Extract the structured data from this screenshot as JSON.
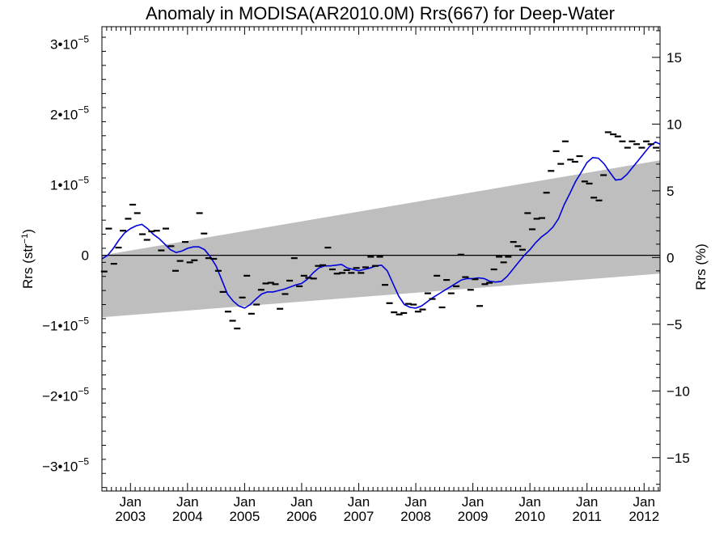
{
  "chart_data": {
    "type": "line",
    "title": "Anomaly in MODISA(AR2010.0M) Rrs(667) for Deep-Water",
    "ylabel_left": "Rrs (str⁻¹)",
    "ylabel_right": "Rrs (%)",
    "x_range": [
      2002.5,
      2012.28
    ],
    "y_range": [
      -3.35e-05,
      3.25e-05
    ],
    "y2_range": [
      -17.5,
      17.3
    ],
    "left_ticks": [
      {
        "value": 3e-05,
        "label": "3•10",
        "exp": "−5"
      },
      {
        "value": 2e-05,
        "label": "2•10",
        "exp": "−5"
      },
      {
        "value": 1e-05,
        "label": "1•10",
        "exp": "−5"
      },
      {
        "value": 0,
        "label": "0",
        "exp": ""
      },
      {
        "value": -1e-05,
        "label": "−1•10",
        "exp": "−5"
      },
      {
        "value": -2e-05,
        "label": "−2•10",
        "exp": "−5"
      },
      {
        "value": -3e-05,
        "label": "−3•10",
        "exp": "−5"
      }
    ],
    "right_ticks": [
      {
        "value": 15,
        "label": "15"
      },
      {
        "value": 10,
        "label": "10"
      },
      {
        "value": 5,
        "label": "5"
      },
      {
        "value": 0,
        "label": "0"
      },
      {
        "value": -5,
        "label": "−5"
      },
      {
        "value": -10,
        "label": "−10"
      },
      {
        "value": -15,
        "label": "−15"
      }
    ],
    "x_ticks": [
      {
        "value": 2003,
        "month": "Jan",
        "year": "2003"
      },
      {
        "value": 2004,
        "month": "Jan",
        "year": "2004"
      },
      {
        "value": 2005,
        "month": "Jan",
        "year": "2005"
      },
      {
        "value": 2006,
        "month": "Jan",
        "year": "2006"
      },
      {
        "value": 2007,
        "month": "Jan",
        "year": "2007"
      },
      {
        "value": 2008,
        "month": "Jan",
        "year": "2008"
      },
      {
        "value": 2009,
        "month": "Jan",
        "year": "2009"
      },
      {
        "value": 2010,
        "month": "Jan",
        "year": "2010"
      },
      {
        "value": 2011,
        "month": "Jan",
        "year": "2011"
      },
      {
        "value": 2012,
        "month": "Jan",
        "year": "2012"
      }
    ],
    "uncertainty_band": {
      "x": [
        2002.5,
        2012.28
      ],
      "upper": [
        0,
        1.35e-05
      ],
      "lower": [
        -8.8e-06,
        -2.6e-06
      ],
      "color": "#bebebe"
    },
    "monthly_anomaly": {
      "x": [
        2002.54,
        2002.62,
        2002.71,
        2002.79,
        2002.87,
        2002.96,
        2003.04,
        2003.12,
        2003.21,
        2003.29,
        2003.37,
        2003.46,
        2003.54,
        2003.62,
        2003.71,
        2003.79,
        2003.87,
        2003.96,
        2004.04,
        2004.12,
        2004.21,
        2004.29,
        2004.37,
        2004.46,
        2004.54,
        2004.62,
        2004.71,
        2004.79,
        2004.87,
        2004.96,
        2005.04,
        2005.12,
        2005.21,
        2005.29,
        2005.37,
        2005.46,
        2005.54,
        2005.62,
        2005.71,
        2005.79,
        2005.87,
        2005.96,
        2006.04,
        2006.12,
        2006.21,
        2006.29,
        2006.37,
        2006.46,
        2006.54,
        2006.62,
        2006.71,
        2006.79,
        2006.87,
        2006.96,
        2007.04,
        2007.12,
        2007.21,
        2007.29,
        2007.37,
        2007.46,
        2007.54,
        2007.62,
        2007.71,
        2007.79,
        2007.87,
        2007.96,
        2008.04,
        2008.12,
        2008.21,
        2008.29,
        2008.37,
        2008.46,
        2008.54,
        2008.62,
        2008.71,
        2008.79,
        2008.87,
        2008.96,
        2009.04,
        2009.12,
        2009.21,
        2009.29,
        2009.37,
        2009.46,
        2009.54,
        2009.62,
        2009.71,
        2009.79,
        2009.87,
        2009.96,
        2010.04,
        2010.12,
        2010.21,
        2010.29,
        2010.37,
        2010.46,
        2010.54,
        2010.62,
        2010.71,
        2010.79,
        2010.87,
        2010.96,
        2011.04,
        2011.12,
        2011.21,
        2011.29,
        2011.37,
        2011.46,
        2011.54,
        2011.62,
        2011.71,
        2011.79,
        2011.87,
        2011.96,
        2012.04,
        2012.12,
        2012.21
      ],
      "y": [
        -2.3e-06,
        3.8e-06,
        -1.2e-06,
        1.1e-06,
        3.5e-06,
        5.2e-06,
        7.2e-06,
        6e-06,
        3e-06,
        2.2e-06,
        3.4e-06,
        3.5e-06,
        7e-07,
        3.8e-06,
        1.3e-06,
        -2.2e-06,
        -8e-07,
        1.9e-06,
        -1e-06,
        -7e-07,
        6e-06,
        3.1e-06,
        -4e-07,
        -5e-07,
        -2.2e-06,
        -5.2e-06,
        -8e-06,
        -9.3e-06,
        -1.04e-05,
        -6e-06,
        -2.9e-06,
        -8.3e-06,
        -7e-06,
        -4.9e-06,
        -4e-06,
        -3.9e-06,
        -4.1e-06,
        -7.6e-06,
        -5.5e-06,
        -3.6e-06,
        -4e-07,
        -4.4e-06,
        -2.9e-06,
        -3.2e-06,
        -3.3e-06,
        -1.5e-06,
        -1.4e-06,
        1.1e-06,
        -2e-06,
        -2.6e-06,
        -2.5e-06,
        -2.1e-06,
        -2.5e-06,
        -1.8e-06,
        -2.5e-06,
        -1.7e-06,
        -2e-07,
        -1.5e-06,
        -2e-07,
        -4.2e-06,
        -6.8e-06,
        -8.1e-06,
        -8.4e-06,
        -8.2e-06,
        -6.9e-06,
        -7e-06,
        -8e-06,
        -7.7e-06,
        -5.4e-06,
        -6.2e-06,
        -2.9e-06,
        -7.4e-06,
        -3.5e-06,
        -5.4e-06,
        -4.4e-06,
        1e-07,
        -3.1e-06,
        -4.9e-06,
        -3.4e-06,
        -7.2e-06,
        -4.1e-06,
        -3.9e-06,
        -2e-06,
        -2e-07,
        -1e-06,
        -2e-07,
        1.9e-06,
        1.3e-06,
        8e-07,
        6e-06,
        3.7e-06,
        5.2e-06,
        5.3e-06,
        8.9e-06,
        1.2e-05,
        1.48e-05,
        1.3e-05,
        1.62e-05,
        1.36e-05,
        1.33e-05,
        1.41e-05,
        1.05e-05,
        1.02e-05,
        8.2e-06,
        7.8e-06,
        1.14e-05,
        1.75e-05,
        1.72e-05,
        1.69e-05,
        1.62e-05,
        1.53e-05,
        1.62e-05,
        1.58e-05,
        1.53e-05,
        1.62e-05,
        1.58e-05,
        1.53e-05
      ]
    },
    "smoothed": {
      "color": "#0000dd",
      "x": [
        2002.5,
        2002.6,
        2002.7,
        2002.8,
        2002.9,
        2003.0,
        2003.1,
        2003.2,
        2003.3,
        2003.4,
        2003.5,
        2003.6,
        2003.7,
        2003.8,
        2003.9,
        2004.0,
        2004.1,
        2004.2,
        2004.3,
        2004.4,
        2004.5,
        2004.6,
        2004.7,
        2004.8,
        2004.9,
        2005.0,
        2005.1,
        2005.2,
        2005.3,
        2005.4,
        2005.5,
        2005.6,
        2005.7,
        2005.8,
        2005.9,
        2006.0,
        2006.1,
        2006.2,
        2006.3,
        2006.4,
        2006.5,
        2006.6,
        2006.7,
        2006.8,
        2006.9,
        2007.0,
        2007.1,
        2007.2,
        2007.3,
        2007.4,
        2007.5,
        2007.6,
        2007.7,
        2007.8,
        2007.9,
        2008.0,
        2008.1,
        2008.2,
        2008.3,
        2008.4,
        2008.5,
        2008.6,
        2008.7,
        2008.8,
        2008.9,
        2009.0,
        2009.1,
        2009.2,
        2009.3,
        2009.4,
        2009.5,
        2009.6,
        2009.7,
        2009.8,
        2009.9,
        2010.0,
        2010.1,
        2010.2,
        2010.3,
        2010.4,
        2010.5,
        2010.6,
        2010.7,
        2010.8,
        2010.9,
        2011.0,
        2011.1,
        2011.2,
        2011.3,
        2011.4,
        2011.5,
        2011.6,
        2011.7,
        2011.8,
        2011.9,
        2012.0,
        2012.1,
        2012.2,
        2012.28
      ],
      "y": [
        -5e-07,
        0.0,
        1e-06,
        2.2e-06,
        3.2e-06,
        3.8e-06,
        4.2e-06,
        4.4e-06,
        3.8e-06,
        3e-06,
        2.4e-06,
        1.6e-06,
        8e-07,
        4e-07,
        6e-07,
        1e-06,
        1.2e-06,
        1.2e-06,
        8e-07,
        -2e-07,
        -1.5e-06,
        -3.5e-06,
        -5.5e-06,
        -6.5e-06,
        -7.2e-06,
        -7.5e-06,
        -7e-06,
        -6.2e-06,
        -5.5e-06,
        -5.2e-06,
        -5.2e-06,
        -5e-06,
        -4.8e-06,
        -4.5e-06,
        -4.2e-06,
        -4e-06,
        -3.4e-06,
        -2.5e-06,
        -1.8e-06,
        -1.5e-06,
        -1.5e-06,
        -1.4e-06,
        -1.3e-06,
        -1.8e-06,
        -2e-06,
        -2.2e-06,
        -2e-06,
        -1.8e-06,
        -1.5e-06,
        -1.4e-06,
        -2.2e-06,
        -4e-06,
        -5.8e-06,
        -7e-06,
        -7.4e-06,
        -7.5e-06,
        -7.2e-06,
        -6.6e-06,
        -6e-06,
        -5.5e-06,
        -5e-06,
        -4.5e-06,
        -4e-06,
        -3.5e-06,
        -3.3e-06,
        -3.3e-06,
        -3.2e-06,
        -3.3e-06,
        -3.7e-06,
        -3.8e-06,
        -3.7e-06,
        -3e-06,
        -2e-06,
        -1e-06,
        0.0,
        8e-07,
        1.8e-06,
        2.6e-06,
        3.2e-06,
        4e-06,
        5.2e-06,
        7.2e-06,
        8.8e-06,
        1.05e-05,
        1.18e-05,
        1.32e-05,
        1.39e-05,
        1.38e-05,
        1.3e-05,
        1.18e-05,
        1.07e-05,
        1.08e-05,
        1.15e-05,
        1.25e-05,
        1.35e-05,
        1.45e-05,
        1.55e-05,
        1.61e-05,
        1.58e-05
      ]
    }
  }
}
